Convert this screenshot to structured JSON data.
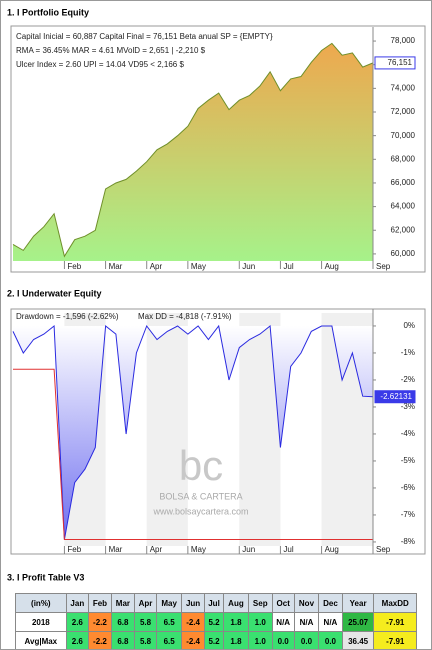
{
  "sections": [
    "1. I Portfolio Equity",
    "2. I Underwater Equity",
    "3. I Profit Table V3"
  ],
  "watermark": {
    "logo": "bc",
    "name": "BOLSA & CARTERA",
    "url": "www.bolsaycartera.com"
  },
  "chart_data": [
    {
      "type": "area",
      "annotations": [
        "Capital Inicial = 60,887  Capital Final = 76,151  Beta anual SP = {EMPTY}",
        "RMA = 36.45%   MAR = 4.61   MVolD = 2,651 | -2,210 $",
        "Ulcer Index = 2.60   UPI = 14.04   VD95 < 2,166 $"
      ],
      "categories": [
        null,
        null,
        null,
        null,
        null,
        "Feb",
        null,
        null,
        null,
        "Mar",
        null,
        null,
        null,
        "Apr",
        null,
        null,
        null,
        "May",
        null,
        null,
        null,
        null,
        "Jun",
        null,
        null,
        null,
        "Jul",
        null,
        null,
        null,
        "Aug",
        null,
        null,
        null,
        null,
        "Sep"
      ],
      "series": [
        {
          "color": "#6f8f2a",
          "fill_colors": [
            "#eea84e",
            "#a6f28a"
          ],
          "values": [
            60800,
            60300,
            61500,
            62300,
            63400,
            59800,
            61200,
            61500,
            62000,
            65500,
            66000,
            66300,
            67000,
            67800,
            68800,
            69300,
            70000,
            70800,
            72300,
            73000,
            73600,
            72200,
            73000,
            73400,
            74200,
            75400,
            73800,
            74800,
            75000,
            76200,
            77200,
            77800,
            76800,
            77000,
            75800,
            76151
          ]
        }
      ],
      "end_label": "76,151",
      "ylim": [
        59400,
        78850
      ],
      "yticks": [
        {
          "value": 60000,
          "label": "60,000"
        },
        {
          "value": 62000,
          "label": "62,000"
        },
        {
          "value": 64000,
          "label": "64,000"
        },
        {
          "value": 66000,
          "label": "66,000"
        },
        {
          "value": 68000,
          "label": "68,000"
        },
        {
          "value": 70000,
          "label": "70,000"
        },
        {
          "value": 72000,
          "label": "72,000"
        },
        {
          "value": 74000,
          "label": "74,000"
        },
        {
          "value": 76000,
          "label": "76,000"
        },
        {
          "value": 78000,
          "label": "78,000"
        }
      ]
    },
    {
      "type": "area",
      "annotations": [
        "Drawdown = -1,596 (-2.62%)",
        "Max DD = -4,818 (-7.91%)"
      ],
      "categories": [
        null,
        null,
        null,
        null,
        null,
        "Feb",
        null,
        null,
        null,
        "Mar",
        null,
        null,
        null,
        "Apr",
        null,
        null,
        null,
        "May",
        null,
        null,
        null,
        null,
        "Jun",
        null,
        null,
        null,
        "Jul",
        null,
        null,
        null,
        "Aug",
        null,
        null,
        null,
        null,
        "Sep"
      ],
      "series": [
        {
          "color": "#2a2ae0",
          "fill_colors": [
            "#ffffff",
            "#6e6ef0"
          ],
          "values": [
            -0.2,
            -1.0,
            -0.5,
            -0.3,
            0,
            -7.91,
            -5.8,
            -5.3,
            -4.5,
            0,
            -0.3,
            -4.0,
            -1.0,
            0,
            -0.5,
            -0.2,
            0,
            -0.3,
            0,
            -0.5,
            0,
            -2.0,
            -0.8,
            -0.5,
            -0.3,
            0,
            -4.5,
            -1.5,
            -1.0,
            -0.2,
            0,
            0,
            -2.0,
            -1.0,
            -2.6,
            -2.62131
          ]
        },
        {
          "color": "#e03030",
          "values": [
            -1.6,
            -1.6,
            -1.6,
            -1.6,
            -1.6,
            -7.91,
            -7.91,
            -7.91,
            -7.91,
            -7.91,
            -7.91,
            -7.91,
            -7.91,
            -7.91,
            -7.91,
            -7.91,
            -7.91,
            -7.91,
            -7.91,
            -7.91,
            -7.91,
            -7.91,
            -7.91,
            -7.91,
            -7.91,
            -7.91,
            -7.91,
            -7.91,
            -7.91,
            -7.91,
            -7.91,
            -7.91,
            -7.91,
            -7.91,
            -7.91,
            -7.91
          ]
        }
      ],
      "end_label": "-2.62131",
      "ylim": [
        -8.15,
        0.48
      ],
      "yticks": [
        {
          "value": 0,
          "label": "0%"
        },
        {
          "value": -1,
          "label": "-1%"
        },
        {
          "value": -2,
          "label": "-2%"
        },
        {
          "value": -3,
          "label": "-3%"
        },
        {
          "value": -4,
          "label": "-4%"
        },
        {
          "value": -5,
          "label": "-5%"
        },
        {
          "value": -6,
          "label": "-6%"
        },
        {
          "value": -7,
          "label": "-7%"
        },
        {
          "value": -8,
          "label": "-8%"
        }
      ]
    }
  ],
  "table": {
    "header": [
      "(in%)",
      "Jan",
      "Feb",
      "Mar",
      "Apr",
      "May",
      "Jun",
      "Jul",
      "Aug",
      "Sep",
      "Oct",
      "Nov",
      "Dec",
      "Year",
      "MaxDD"
    ],
    "rows": [
      [
        "2018",
        "2.6",
        "-2.2",
        "6.8",
        "5.8",
        "6.5",
        "-2.4",
        "5.2",
        "1.8",
        "1.0",
        "N/A",
        "N/A",
        "N/A",
        "25.07",
        "-7.91"
      ],
      [
        "Avg|Max",
        "2.6",
        "-2.2",
        "6.8",
        "5.8",
        "6.5",
        "-2.4",
        "5.2",
        "1.8",
        "1.0",
        "0.0",
        "0.0",
        "0.0",
        "36.45",
        "-7.91"
      ]
    ]
  }
}
